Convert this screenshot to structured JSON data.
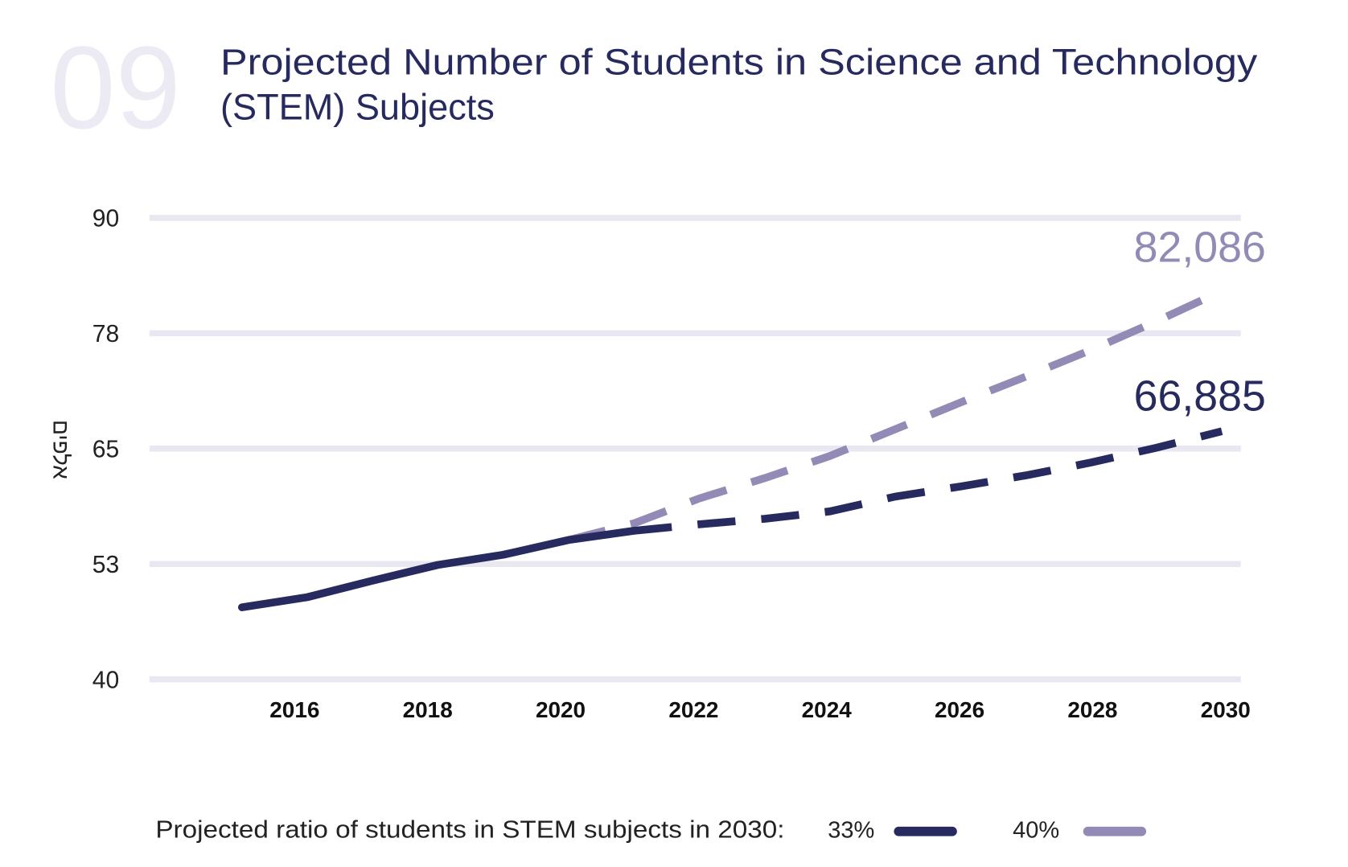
{
  "header": {
    "number": "09",
    "title_line1": "Projected Number of Students in Science and Technology",
    "title_line2": "(STEM) Subjects"
  },
  "colors": {
    "dark": "#262a5e",
    "light": "#938bb6",
    "grid": "#e9e8f1",
    "number": "#ecebf3"
  },
  "chart_data": {
    "type": "line",
    "title": "Projected Number of Students in Science and Technology (STEM) Subjects",
    "ylabel": "אלפים",
    "xlabel": "",
    "ylim": [
      40,
      90
    ],
    "xlim": [
      2015,
      2030
    ],
    "y_ticks": [
      "90",
      "78",
      "65",
      "53",
      "40"
    ],
    "x_ticks": [
      "2016",
      "2018",
      "2020",
      "2022",
      "2024",
      "2026",
      "2028",
      "2030"
    ],
    "grid": true,
    "legend_position": "bottom",
    "legend_title": "Projected ratio of students in STEM subjects in 2030:",
    "series": [
      {
        "name": "33%",
        "style": "solid until 2021, dashed projection after",
        "x": [
          2015,
          2016,
          2017,
          2018,
          2019,
          2020,
          2021,
          2022,
          2023,
          2024,
          2025,
          2026,
          2027,
          2028,
          2029,
          2030
        ],
        "values": [
          47.8,
          48.9,
          50.7,
          52.4,
          53.5,
          55.1,
          56.1,
          56.8,
          57.4,
          58.2,
          59.8,
          60.9,
          62.1,
          63.5,
          65.1,
          66.885
        ],
        "end_label": "66,885"
      },
      {
        "name": "40%",
        "style": "dashed projection from 2020",
        "x": [
          2020,
          2021,
          2022,
          2023,
          2024,
          2025,
          2026,
          2027,
          2028,
          2029,
          2030
        ],
        "values": [
          55.1,
          56.9,
          59.6,
          61.8,
          64.2,
          67.1,
          70.0,
          72.8,
          75.7,
          78.8,
          82.086
        ],
        "end_label": "82,086"
      }
    ]
  }
}
